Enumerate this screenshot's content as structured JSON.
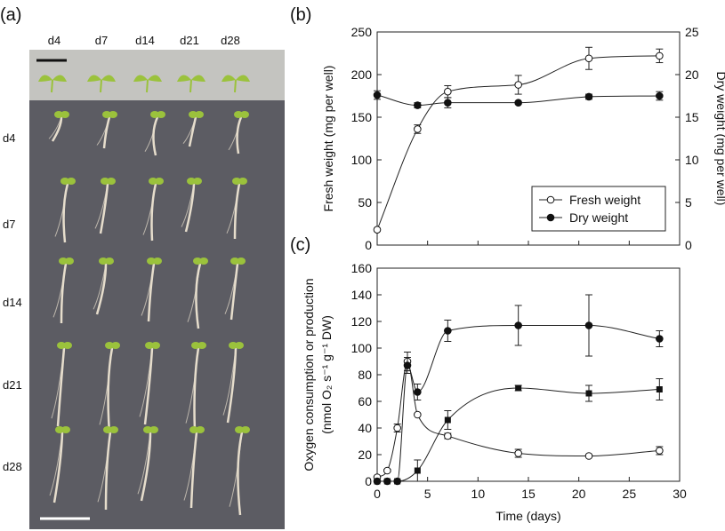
{
  "panels": {
    "a": "(a)",
    "b": "(b)",
    "c": "(c)"
  },
  "photo": {
    "top_labels": [
      "d4",
      "d7",
      "d14",
      "d21",
      "d28"
    ],
    "row_labels": [
      "d4",
      "d7",
      "d14",
      "d21",
      "d28"
    ],
    "colors": {
      "top_bg": "#c4c4c0",
      "bottom_bg": "#5c5c63",
      "leaf": "#9bc23c",
      "stem": "#e6ddcc"
    }
  },
  "chart_data": [
    {
      "panel": "(b)",
      "type": "line",
      "xlim": [
        0,
        30
      ],
      "ylim": [
        0,
        250
      ],
      "ylim_right": [
        0,
        25
      ],
      "yticks": [
        0,
        50,
        100,
        150,
        200,
        250
      ],
      "yticks_right": [
        0,
        5,
        10,
        15,
        20,
        25
      ],
      "ylabel": "Fresh weight (mg per well)",
      "ylabel_right": "Dry weight (mg per well)",
      "legend_position": "bottom-right",
      "series": [
        {
          "name": "Fresh weight",
          "marker": "open-circle",
          "axis": "left",
          "x": [
            0,
            4,
            7,
            14,
            21,
            28
          ],
          "y": [
            18,
            136,
            180,
            188,
            219,
            222
          ],
          "err": [
            0,
            5,
            7,
            11,
            13,
            8
          ]
        },
        {
          "name": "Dry weight",
          "marker": "filled-circle",
          "axis": "right",
          "x": [
            0,
            4,
            7,
            14,
            21,
            28
          ],
          "y": [
            17.6,
            16.4,
            16.7,
            16.7,
            17.4,
            17.5
          ],
          "err": [
            0.5,
            0.3,
            0.6,
            0,
            0.3,
            0.5
          ]
        }
      ]
    },
    {
      "panel": "(c)",
      "type": "line",
      "xlim": [
        0,
        30
      ],
      "ylim": [
        0,
        160
      ],
      "xticks": [
        0,
        5,
        10,
        15,
        20,
        25,
        30
      ],
      "yticks": [
        0,
        20,
        40,
        60,
        80,
        100,
        120,
        140,
        160
      ],
      "xlabel": "Time (days)",
      "ylabel_line1": "Oxygen consumption or production",
      "ylabel_line2": "(nmol O₂ s⁻¹ g⁻¹ DW)",
      "series": [
        {
          "marker": "open-circle",
          "x": [
            0,
            1,
            2,
            3,
            4,
            7,
            14,
            21,
            28
          ],
          "y": [
            3,
            8,
            40,
            90,
            50,
            34,
            21,
            19,
            23
          ],
          "err": [
            0,
            1,
            3,
            7,
            0,
            2,
            3,
            1,
            3
          ]
        },
        {
          "marker": "filled-circle",
          "x": [
            0,
            1,
            2,
            3,
            4,
            7,
            14,
            21,
            28
          ],
          "y": [
            0,
            0,
            0,
            87,
            67,
            113,
            117,
            117,
            107
          ],
          "err": [
            0,
            0,
            0,
            6,
            6,
            8,
            15,
            23,
            6
          ]
        },
        {
          "marker": "filled-square",
          "x": [
            0,
            1,
            2,
            4,
            7,
            14,
            21,
            28
          ],
          "y": [
            0,
            0,
            0,
            8,
            46,
            70,
            66,
            69
          ],
          "err": [
            0,
            0,
            0,
            8,
            7,
            2,
            6,
            8
          ]
        }
      ]
    }
  ]
}
